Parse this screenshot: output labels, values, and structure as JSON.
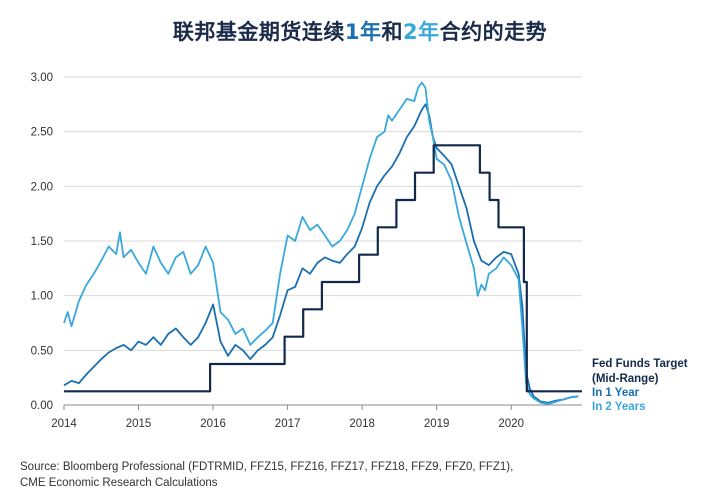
{
  "title": {
    "part1": "联邦基金期货连续",
    "hl1": "1年",
    "part2": "和",
    "hl2": "2年",
    "part3": "合约的走势"
  },
  "source": {
    "line1": "Source: Bloomberg Professional (FDTRMID, FFZ15, FFZ16, FFZ17, FFZ18, FFZ9, FFZ0, FFZ1),",
    "line2": "CME Economic Research Calculations"
  },
  "colors": {
    "fed_funds": "#13294b",
    "one_year": "#1a6fb0",
    "two_years": "#3aa8dd",
    "grid": "#d9d9d9",
    "axis": "#888888"
  },
  "chart_data": {
    "type": "line",
    "title": "联邦基金期货连续1年和2年合约的走势",
    "xlabel": "",
    "ylabel": "",
    "xlim": [
      2014.0,
      2020.95
    ],
    "ylim": [
      0,
      3.0
    ],
    "x_ticks": [
      "2014",
      "2015",
      "2016",
      "2017",
      "2018",
      "2019",
      "2020"
    ],
    "y_ticks": [
      "0.00",
      "0.50",
      "1.00",
      "1.50",
      "2.00",
      "2.50",
      "3.00"
    ],
    "grid": "horizontal",
    "legend_position": "right",
    "series": [
      {
        "name": "Fed Funds Target (Mid-Range)",
        "name_line1": "Fed Funds Target",
        "name_line2": "(Mid-Range)",
        "color": "#13294b",
        "step": true,
        "points": [
          [
            2014.0,
            0.125
          ],
          [
            2015.96,
            0.375
          ],
          [
            2016.96,
            0.625
          ],
          [
            2017.21,
            0.875
          ],
          [
            2017.46,
            1.125
          ],
          [
            2017.96,
            1.375
          ],
          [
            2018.21,
            1.625
          ],
          [
            2018.46,
            1.875
          ],
          [
            2018.71,
            2.125
          ],
          [
            2018.96,
            2.375
          ],
          [
            2019.58,
            2.125
          ],
          [
            2019.71,
            1.875
          ],
          [
            2019.83,
            1.625
          ],
          [
            2020.17,
            1.125
          ],
          [
            2020.21,
            0.125
          ],
          [
            2020.95,
            0.125
          ]
        ]
      },
      {
        "name": "In 1 Year",
        "color": "#1a6fb0",
        "points": [
          [
            2014.0,
            0.18
          ],
          [
            2014.1,
            0.22
          ],
          [
            2014.2,
            0.2
          ],
          [
            2014.3,
            0.28
          ],
          [
            2014.4,
            0.35
          ],
          [
            2014.5,
            0.42
          ],
          [
            2014.6,
            0.48
          ],
          [
            2014.7,
            0.52
          ],
          [
            2014.8,
            0.55
          ],
          [
            2014.9,
            0.5
          ],
          [
            2015.0,
            0.58
          ],
          [
            2015.1,
            0.55
          ],
          [
            2015.2,
            0.62
          ],
          [
            2015.3,
            0.55
          ],
          [
            2015.4,
            0.65
          ],
          [
            2015.5,
            0.7
          ],
          [
            2015.6,
            0.62
          ],
          [
            2015.7,
            0.55
          ],
          [
            2015.8,
            0.62
          ],
          [
            2015.9,
            0.75
          ],
          [
            2016.0,
            0.92
          ],
          [
            2016.1,
            0.58
          ],
          [
            2016.2,
            0.45
          ],
          [
            2016.3,
            0.55
          ],
          [
            2016.4,
            0.5
          ],
          [
            2016.5,
            0.42
          ],
          [
            2016.6,
            0.5
          ],
          [
            2016.7,
            0.55
          ],
          [
            2016.8,
            0.62
          ],
          [
            2016.9,
            0.82
          ],
          [
            2017.0,
            1.05
          ],
          [
            2017.1,
            1.08
          ],
          [
            2017.2,
            1.25
          ],
          [
            2017.3,
            1.2
          ],
          [
            2017.4,
            1.3
          ],
          [
            2017.5,
            1.35
          ],
          [
            2017.6,
            1.32
          ],
          [
            2017.7,
            1.3
          ],
          [
            2017.8,
            1.38
          ],
          [
            2017.9,
            1.45
          ],
          [
            2018.0,
            1.62
          ],
          [
            2018.1,
            1.85
          ],
          [
            2018.2,
            2.0
          ],
          [
            2018.3,
            2.1
          ],
          [
            2018.4,
            2.18
          ],
          [
            2018.5,
            2.3
          ],
          [
            2018.6,
            2.45
          ],
          [
            2018.7,
            2.55
          ],
          [
            2018.8,
            2.7
          ],
          [
            2018.85,
            2.75
          ],
          [
            2018.9,
            2.65
          ],
          [
            2018.95,
            2.45
          ],
          [
            2019.0,
            2.35
          ],
          [
            2019.1,
            2.28
          ],
          [
            2019.2,
            2.2
          ],
          [
            2019.3,
            2.0
          ],
          [
            2019.4,
            1.8
          ],
          [
            2019.5,
            1.5
          ],
          [
            2019.6,
            1.32
          ],
          [
            2019.7,
            1.28
          ],
          [
            2019.8,
            1.35
          ],
          [
            2019.9,
            1.4
          ],
          [
            2020.0,
            1.38
          ],
          [
            2020.1,
            1.2
          ],
          [
            2020.15,
            0.9
          ],
          [
            2020.2,
            0.3
          ],
          [
            2020.25,
            0.15
          ],
          [
            2020.3,
            0.08
          ],
          [
            2020.4,
            0.03
          ],
          [
            2020.5,
            0.02
          ],
          [
            2020.6,
            0.04
          ],
          [
            2020.7,
            0.05
          ],
          [
            2020.8,
            0.07
          ],
          [
            2020.9,
            0.08
          ]
        ]
      },
      {
        "name": "In 2 Years",
        "color": "#3aa8dd",
        "points": [
          [
            2014.0,
            0.75
          ],
          [
            2014.05,
            0.85
          ],
          [
            2014.1,
            0.72
          ],
          [
            2014.2,
            0.95
          ],
          [
            2014.3,
            1.1
          ],
          [
            2014.4,
            1.2
          ],
          [
            2014.5,
            1.32
          ],
          [
            2014.6,
            1.45
          ],
          [
            2014.7,
            1.38
          ],
          [
            2014.75,
            1.58
          ],
          [
            2014.8,
            1.35
          ],
          [
            2014.9,
            1.42
          ],
          [
            2015.0,
            1.3
          ],
          [
            2015.1,
            1.2
          ],
          [
            2015.2,
            1.45
          ],
          [
            2015.3,
            1.3
          ],
          [
            2015.4,
            1.2
          ],
          [
            2015.5,
            1.35
          ],
          [
            2015.6,
            1.4
          ],
          [
            2015.7,
            1.2
          ],
          [
            2015.8,
            1.28
          ],
          [
            2015.9,
            1.45
          ],
          [
            2016.0,
            1.3
          ],
          [
            2016.1,
            0.85
          ],
          [
            2016.2,
            0.78
          ],
          [
            2016.3,
            0.65
          ],
          [
            2016.4,
            0.7
          ],
          [
            2016.5,
            0.55
          ],
          [
            2016.6,
            0.62
          ],
          [
            2016.7,
            0.68
          ],
          [
            2016.8,
            0.75
          ],
          [
            2016.9,
            1.2
          ],
          [
            2017.0,
            1.55
          ],
          [
            2017.1,
            1.5
          ],
          [
            2017.2,
            1.72
          ],
          [
            2017.3,
            1.6
          ],
          [
            2017.4,
            1.65
          ],
          [
            2017.5,
            1.55
          ],
          [
            2017.6,
            1.45
          ],
          [
            2017.7,
            1.5
          ],
          [
            2017.8,
            1.6
          ],
          [
            2017.9,
            1.75
          ],
          [
            2018.0,
            2.0
          ],
          [
            2018.1,
            2.25
          ],
          [
            2018.2,
            2.45
          ],
          [
            2018.3,
            2.5
          ],
          [
            2018.35,
            2.65
          ],
          [
            2018.4,
            2.6
          ],
          [
            2018.5,
            2.7
          ],
          [
            2018.6,
            2.8
          ],
          [
            2018.7,
            2.78
          ],
          [
            2018.75,
            2.9
          ],
          [
            2018.8,
            2.95
          ],
          [
            2018.85,
            2.9
          ],
          [
            2018.9,
            2.6
          ],
          [
            2018.95,
            2.45
          ],
          [
            2019.0,
            2.25
          ],
          [
            2019.1,
            2.2
          ],
          [
            2019.2,
            2.05
          ],
          [
            2019.3,
            1.72
          ],
          [
            2019.4,
            1.48
          ],
          [
            2019.5,
            1.25
          ],
          [
            2019.55,
            1.0
          ],
          [
            2019.6,
            1.1
          ],
          [
            2019.65,
            1.05
          ],
          [
            2019.7,
            1.2
          ],
          [
            2019.8,
            1.25
          ],
          [
            2019.9,
            1.35
          ],
          [
            2020.0,
            1.28
          ],
          [
            2020.1,
            1.15
          ],
          [
            2020.15,
            0.7
          ],
          [
            2020.2,
            0.2
          ],
          [
            2020.25,
            0.1
          ],
          [
            2020.3,
            0.06
          ],
          [
            2020.4,
            0.02
          ],
          [
            2020.5,
            0.01
          ],
          [
            2020.6,
            0.03
          ],
          [
            2020.7,
            0.05
          ],
          [
            2020.8,
            0.07
          ],
          [
            2020.9,
            0.08
          ]
        ]
      }
    ]
  }
}
